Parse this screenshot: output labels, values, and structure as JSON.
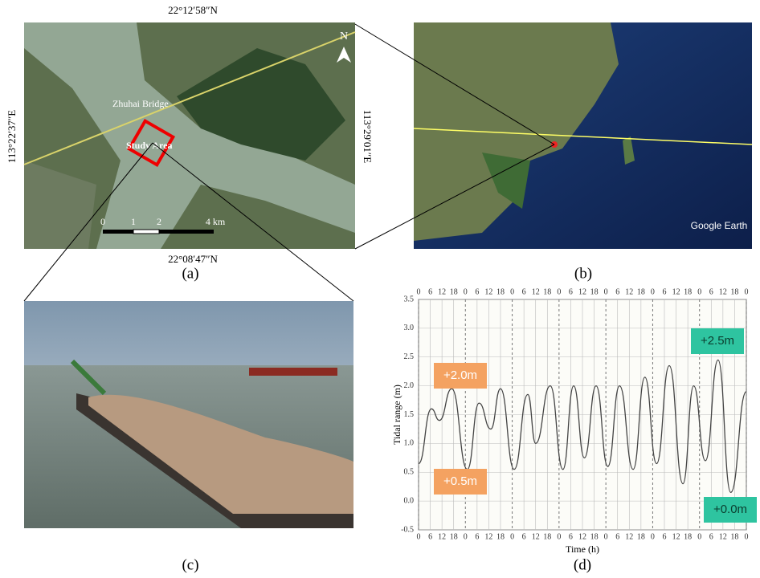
{
  "panel_a": {
    "lat_top": "22°12′58″N",
    "lat_bottom": "22°08′47″N",
    "lon_left": "113°22′37″E",
    "lon_right": "113°29′01″E",
    "north": "N",
    "bridge": "Zhuhai Bridge",
    "study_area": "Study Area",
    "scale": [
      "0",
      "1",
      "2",
      "4 km"
    ],
    "caption": "(a)"
  },
  "panel_b": {
    "brand": "Google Earth",
    "caption": "(b)"
  },
  "panel_c": {
    "caption": "(c)"
  },
  "chart_data": {
    "type": "line",
    "caption": "(d)",
    "xlabel": "Time (h)",
    "ylabel": "Tidal range (m)",
    "xlim": [
      0,
      168
    ],
    "ylim": [
      -0.5,
      3.5
    ],
    "xticks": [
      0,
      6,
      12,
      18,
      {
        "value": 24,
        "label": "0"
      },
      {
        "value": 30,
        "label": "6"
      },
      {
        "value": 36,
        "label": "12"
      },
      {
        "value": 42,
        "label": "18"
      },
      {
        "value": 48,
        "label": "0"
      },
      {
        "value": 54,
        "label": "6"
      },
      {
        "value": 60,
        "label": "12"
      },
      {
        "value": 66,
        "label": "18"
      },
      {
        "value": 72,
        "label": "0"
      },
      {
        "value": 78,
        "label": "6"
      },
      {
        "value": 84,
        "label": "12"
      },
      {
        "value": 90,
        "label": "18"
      },
      {
        "value": 96,
        "label": "0"
      },
      {
        "value": 102,
        "label": "6"
      },
      {
        "value": 108,
        "label": "12"
      },
      {
        "value": 114,
        "label": "18"
      },
      {
        "value": 120,
        "label": "0"
      },
      {
        "value": 126,
        "label": "6"
      },
      {
        "value": 132,
        "label": "12"
      },
      {
        "value": 138,
        "label": "18"
      },
      {
        "value": 144,
        "label": "0"
      },
      {
        "value": 150,
        "label": "6"
      },
      {
        "value": 156,
        "label": "12"
      },
      {
        "value": 162,
        "label": "18"
      },
      {
        "value": 168,
        "label": "0"
      }
    ],
    "yticks": [
      -0.5,
      {
        "value": 0,
        "label": "0.0"
      },
      0.5,
      {
        "value": 1,
        "label": "1.0"
      },
      1.5,
      {
        "value": 2,
        "label": "2.0"
      },
      2.5,
      {
        "value": 3,
        "label": "3.0"
      },
      3.5
    ],
    "grid": true,
    "series": [
      {
        "color": "#444444",
        "x": [
          0,
          6.6,
          10.7,
          17,
          25,
          31,
          37,
          42,
          49,
          56,
          60,
          67.5,
          74,
          79.5,
          85,
          91,
          97,
          103,
          110,
          116,
          122,
          128.5,
          135.5,
          141,
          147,
          153.5,
          160,
          168
        ],
        "values": [
          0.65,
          1.6,
          1.4,
          1.95,
          0.55,
          1.7,
          1.25,
          1.95,
          0.55,
          1.85,
          1.0,
          2.0,
          0.55,
          2.0,
          0.75,
          2.0,
          0.6,
          2.0,
          0.55,
          2.15,
          0.65,
          2.35,
          0.3,
          2.0,
          0.7,
          2.45,
          0.15,
          1.9
        ]
      }
    ],
    "annotations": [
      {
        "text": "+2.0m",
        "color": "#f4a261"
      },
      {
        "text": "+0.5m",
        "color": "#f4a261"
      },
      {
        "text": "+2.5m",
        "color": "#2ec4a0"
      },
      {
        "text": "+0.0m",
        "color": "#2ec4a0"
      }
    ]
  }
}
